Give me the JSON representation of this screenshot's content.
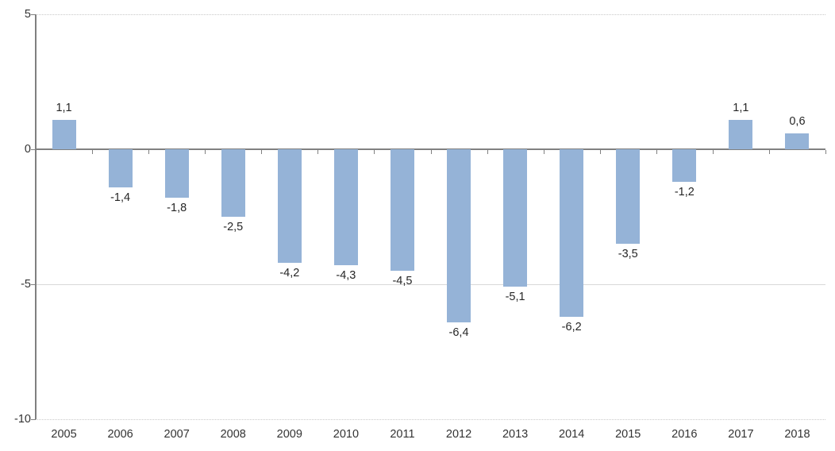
{
  "chart_data": {
    "type": "bar",
    "title": "",
    "xlabel": "",
    "ylabel": "",
    "categories": [
      "2005",
      "2006",
      "2007",
      "2008",
      "2009",
      "2010",
      "2011",
      "2012",
      "2013",
      "2014",
      "2015",
      "2016",
      "2017",
      "2018"
    ],
    "values": [
      1.1,
      -1.4,
      -1.8,
      -2.5,
      -4.2,
      -4.3,
      -4.5,
      -6.4,
      -5.1,
      -6.2,
      -3.5,
      -1.2,
      1.1,
      0.6
    ],
    "value_labels": [
      "1,1",
      "-1,4",
      "-1,8",
      "-2,5",
      "-4,2",
      "-4,3",
      "-4,5",
      "-6,4",
      "-5,1",
      "-6,2",
      "-3,5",
      "-1,2",
      "1,1",
      "0,6"
    ],
    "ylim": [
      -10,
      5
    ],
    "yticks": [
      5,
      0,
      -5,
      -10
    ],
    "ytick_labels": [
      "5",
      "0",
      "-5",
      "-10"
    ],
    "grid": true,
    "legend": "none",
    "colors": {
      "bar_fill": "#95B3D7",
      "axis_line": "#808080",
      "gridline": "#D9D9D9",
      "value_label_text": "#262626",
      "axis_label_text": "#333333",
      "background": "#FFFFFF"
    }
  }
}
